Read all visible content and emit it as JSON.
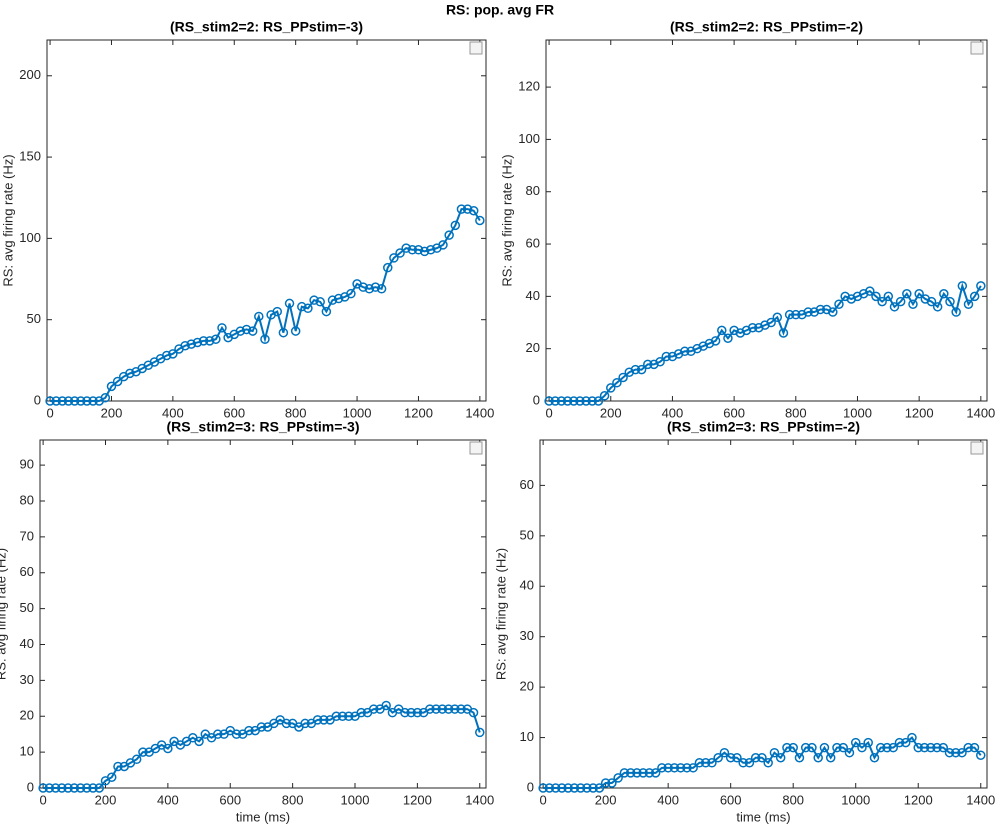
{
  "title": "RS: pop. avg FR",
  "chart_data": [
    {
      "type": "line",
      "title": "(RS_stim2=2: RS_PPstim=-3)",
      "ylabel": "RS: avg firing rate (Hz)",
      "x": [
        0,
        20,
        40,
        60,
        80,
        100,
        120,
        140,
        160,
        180,
        200,
        220,
        240,
        260,
        280,
        300,
        320,
        340,
        360,
        380,
        400,
        420,
        440,
        460,
        480,
        500,
        520,
        540,
        560,
        580,
        600,
        620,
        640,
        660,
        680,
        700,
        720,
        740,
        760,
        780,
        800,
        820,
        840,
        860,
        880,
        900,
        920,
        940,
        960,
        980,
        1000,
        1020,
        1040,
        1060,
        1080,
        1100,
        1120,
        1140,
        1160,
        1180,
        1200,
        1220,
        1240,
        1260,
        1280,
        1300,
        1320,
        1340,
        1360,
        1380,
        1400
      ],
      "series": [
        {
          "color": "#0072bd",
          "values": [
            0,
            0,
            0,
            0,
            0,
            0,
            0,
            0,
            0,
            2,
            9,
            12,
            15,
            17,
            18,
            20,
            22,
            24,
            26,
            28,
            29,
            32,
            34,
            35,
            36,
            37,
            37,
            38,
            45,
            39,
            41,
            43,
            44,
            43,
            52,
            38,
            53,
            55,
            42,
            60,
            43,
            58,
            57,
            62,
            61,
            55,
            62,
            63,
            64,
            66,
            72,
            70,
            69,
            70,
            69,
            82,
            88,
            91,
            94,
            93,
            93,
            92,
            93,
            94,
            96,
            102,
            108,
            118,
            118,
            117,
            111
          ]
        }
      ],
      "xlim": [
        -10,
        1420
      ],
      "xticks": [
        0,
        200,
        400,
        600,
        800,
        1000,
        1200,
        1400
      ],
      "ylim": [
        0,
        222
      ],
      "yticks": [
        0,
        50,
        100,
        150,
        200
      ]
    },
    {
      "type": "line",
      "title": "(RS_stim2=2: RS_PPstim=-2)",
      "ylabel": "RS: avg firing rate (Hz)",
      "x": [
        0,
        20,
        40,
        60,
        80,
        100,
        120,
        140,
        160,
        180,
        200,
        220,
        240,
        260,
        280,
        300,
        320,
        340,
        360,
        380,
        400,
        420,
        440,
        460,
        480,
        500,
        520,
        540,
        560,
        580,
        600,
        620,
        640,
        660,
        680,
        700,
        720,
        740,
        760,
        780,
        800,
        820,
        840,
        860,
        880,
        900,
        920,
        940,
        960,
        980,
        1000,
        1020,
        1040,
        1060,
        1080,
        1100,
        1120,
        1140,
        1160,
        1180,
        1200,
        1220,
        1240,
        1260,
        1280,
        1300,
        1320,
        1340,
        1360,
        1380,
        1400
      ],
      "series": [
        {
          "color": "#0072bd",
          "values": [
            0,
            0,
            0,
            0,
            0,
            0,
            0,
            0,
            0,
            2,
            5,
            7,
            9,
            11,
            12,
            12,
            14,
            14,
            15,
            17,
            17,
            18,
            19,
            19,
            20,
            21,
            22,
            23,
            27,
            24,
            27,
            26,
            27,
            28,
            28,
            29,
            30,
            32,
            26,
            33,
            33,
            33,
            34,
            34,
            35,
            35,
            34,
            37,
            40,
            39,
            40,
            41,
            42,
            40,
            38,
            40,
            36,
            38,
            41,
            37,
            41,
            39,
            38,
            36,
            41,
            38,
            34,
            44,
            37,
            40,
            44
          ]
        }
      ],
      "xlim": [
        -10,
        1420
      ],
      "xticks": [
        0,
        200,
        400,
        600,
        800,
        1000,
        1200,
        1400
      ],
      "ylim": [
        0,
        138
      ],
      "yticks": [
        0,
        20,
        40,
        60,
        80,
        100,
        120
      ]
    },
    {
      "type": "line",
      "title": "(RS_stim2=3: RS_PPstim=-3)",
      "ylabel": "RS: avg firing rate (Hz)",
      "xlabel": "time (ms)",
      "x": [
        0,
        20,
        40,
        60,
        80,
        100,
        120,
        140,
        160,
        180,
        200,
        220,
        240,
        260,
        280,
        300,
        320,
        340,
        360,
        380,
        400,
        420,
        440,
        460,
        480,
        500,
        520,
        540,
        560,
        580,
        600,
        620,
        640,
        660,
        680,
        700,
        720,
        740,
        760,
        780,
        800,
        820,
        840,
        860,
        880,
        900,
        920,
        940,
        960,
        980,
        1000,
        1020,
        1040,
        1060,
        1080,
        1100,
        1120,
        1140,
        1160,
        1180,
        1200,
        1220,
        1240,
        1260,
        1280,
        1300,
        1320,
        1340,
        1360,
        1380,
        1400
      ],
      "series": [
        {
          "color": "#0072bd",
          "values": [
            0,
            0,
            0,
            0,
            0,
            0,
            0,
            0,
            0,
            0,
            2,
            3,
            6,
            6,
            7,
            8,
            10,
            10,
            11,
            12,
            11,
            13,
            12,
            13,
            14,
            13,
            15,
            14,
            15,
            15,
            16,
            15,
            15,
            16,
            16,
            17,
            17,
            18,
            19,
            18,
            18,
            17,
            18,
            18,
            19,
            19,
            19,
            20,
            20,
            20,
            20,
            21,
            21,
            22,
            22,
            23,
            21,
            22,
            21,
            21,
            21,
            21,
            22,
            22,
            22,
            22,
            22,
            22,
            22,
            21,
            15.5
          ]
        }
      ],
      "xlim": [
        -10,
        1420
      ],
      "xticks": [
        0,
        200,
        400,
        600,
        800,
        1000,
        1200,
        1400
      ],
      "ylim": [
        0,
        97
      ],
      "yticks": [
        0,
        10,
        20,
        30,
        40,
        50,
        60,
        70,
        80,
        90
      ]
    },
    {
      "type": "line",
      "title": "(RS_stim2=3: RS_PPstim=-2)",
      "ylabel": "RS: avg firing rate (Hz)",
      "xlabel": "time (ms)",
      "x": [
        0,
        20,
        40,
        60,
        80,
        100,
        120,
        140,
        160,
        180,
        200,
        220,
        240,
        260,
        280,
        300,
        320,
        340,
        360,
        380,
        400,
        420,
        440,
        460,
        480,
        500,
        520,
        540,
        560,
        580,
        600,
        620,
        640,
        660,
        680,
        700,
        720,
        740,
        760,
        780,
        800,
        820,
        840,
        860,
        880,
        900,
        920,
        940,
        960,
        980,
        1000,
        1020,
        1040,
        1060,
        1080,
        1100,
        1120,
        1140,
        1160,
        1180,
        1200,
        1220,
        1240,
        1260,
        1280,
        1300,
        1320,
        1340,
        1360,
        1380,
        1400
      ],
      "series": [
        {
          "color": "#0072bd",
          "values": [
            0,
            0,
            0,
            0,
            0,
            0,
            0,
            0,
            0,
            0,
            1,
            1,
            2,
            3,
            3,
            3,
            3,
            3,
            3,
            4,
            4,
            4,
            4,
            4,
            4,
            5,
            5,
            5,
            6,
            7,
            6,
            6,
            5,
            5,
            6,
            6,
            5,
            7,
            6,
            8,
            8,
            6,
            8,
            8,
            6,
            8,
            6,
            8,
            8,
            7,
            9,
            8,
            9,
            6,
            8,
            8,
            8,
            9,
            9,
            10,
            8,
            8,
            8,
            8,
            8,
            7,
            7,
            7,
            8,
            8,
            6.5
          ]
        }
      ],
      "xlim": [
        -10,
        1420
      ],
      "xticks": [
        0,
        200,
        400,
        600,
        800,
        1000,
        1200,
        1400
      ],
      "ylim": [
        0,
        69
      ],
      "yticks": [
        0,
        10,
        20,
        30,
        40,
        50,
        60
      ]
    }
  ]
}
